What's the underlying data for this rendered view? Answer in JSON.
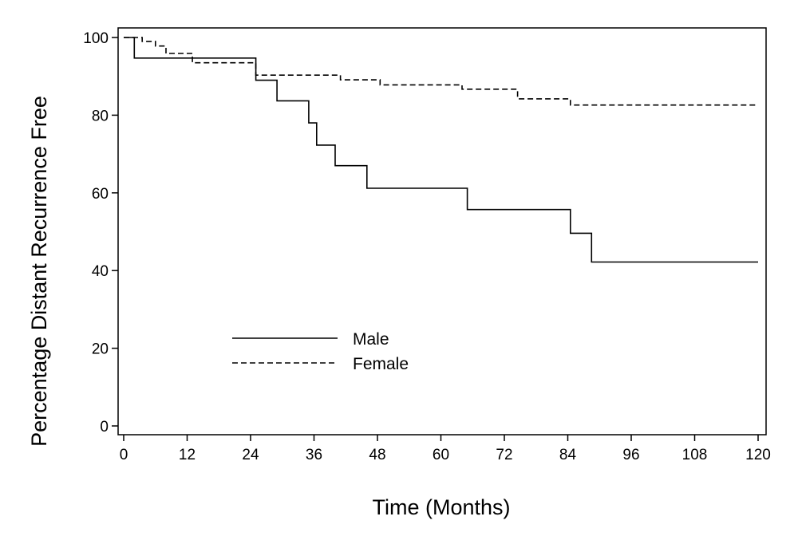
{
  "chart_data": {
    "type": "line",
    "title": "",
    "xlabel": "Time (Months)",
    "ylabel": "Percentage Distant Recurrence Free",
    "xlim": [
      0,
      120
    ],
    "ylim": [
      0,
      100
    ],
    "xticks": [
      0,
      12,
      24,
      36,
      48,
      60,
      72,
      84,
      96,
      108,
      120
    ],
    "yticks": [
      0,
      20,
      40,
      60,
      80,
      100
    ],
    "grid": false,
    "legend_position": "lower-left",
    "series": [
      {
        "name": "Male",
        "step": true,
        "line_style": "solid",
        "x": [
          0,
          2,
          25,
          29,
          35,
          36.5,
          40,
          46,
          65,
          84.5,
          88.5,
          120
        ],
        "y": [
          100,
          94.7,
          89,
          83.7,
          78,
          72.3,
          67,
          61.2,
          55.7,
          49.6,
          42.2,
          42.2
        ]
      },
      {
        "name": "Female",
        "step": true,
        "line_style": "dashed",
        "x": [
          0,
          3.5,
          6,
          8,
          13,
          25,
          41,
          48.5,
          64,
          74.5,
          84.5,
          120
        ],
        "y": [
          100,
          99,
          97.8,
          95.9,
          93.5,
          90.3,
          89.1,
          87.8,
          86.7,
          84.2,
          82.6,
          82.6
        ]
      }
    ]
  }
}
